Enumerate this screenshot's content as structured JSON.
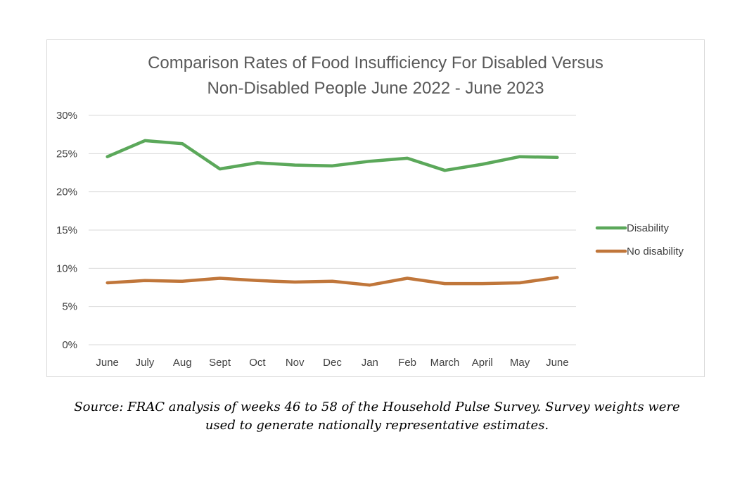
{
  "chart_data": {
    "type": "line",
    "title_lines": [
      "Comparison Rates of Food Insufficiency For Disabled Versus",
      "Non-Disabled People  June 2022 - June 2023"
    ],
    "categories": [
      "June",
      "July",
      "Aug",
      "Sept",
      "Oct",
      "Nov",
      "Dec",
      "Jan",
      "Feb",
      "March",
      "April",
      "May",
      "June"
    ],
    "y_ticks": [
      "0%",
      "5%",
      "10%",
      "15%",
      "20%",
      "25%",
      "30%"
    ],
    "ylim": [
      0,
      30
    ],
    "y_unit": "percent",
    "grid": true,
    "legend_position": "right",
    "series": [
      {
        "name": "Disability",
        "color": "#5ba85a",
        "values": [
          24.6,
          26.7,
          26.3,
          23.0,
          23.8,
          23.5,
          23.4,
          24.0,
          24.4,
          22.8,
          23.6,
          24.6,
          24.5
        ]
      },
      {
        "name": "No disability",
        "color": "#c0763a",
        "values": [
          8.1,
          8.4,
          8.3,
          8.7,
          8.4,
          8.2,
          8.3,
          7.8,
          8.7,
          8.0,
          8.0,
          8.1,
          8.8
        ]
      }
    ]
  },
  "source_note": {
    "line1": "Source: FRAC analysis of weeks 46 to 58 of the Household Pulse Survey. Survey weights were",
    "line2": "used to generate nationally representative estimates."
  }
}
